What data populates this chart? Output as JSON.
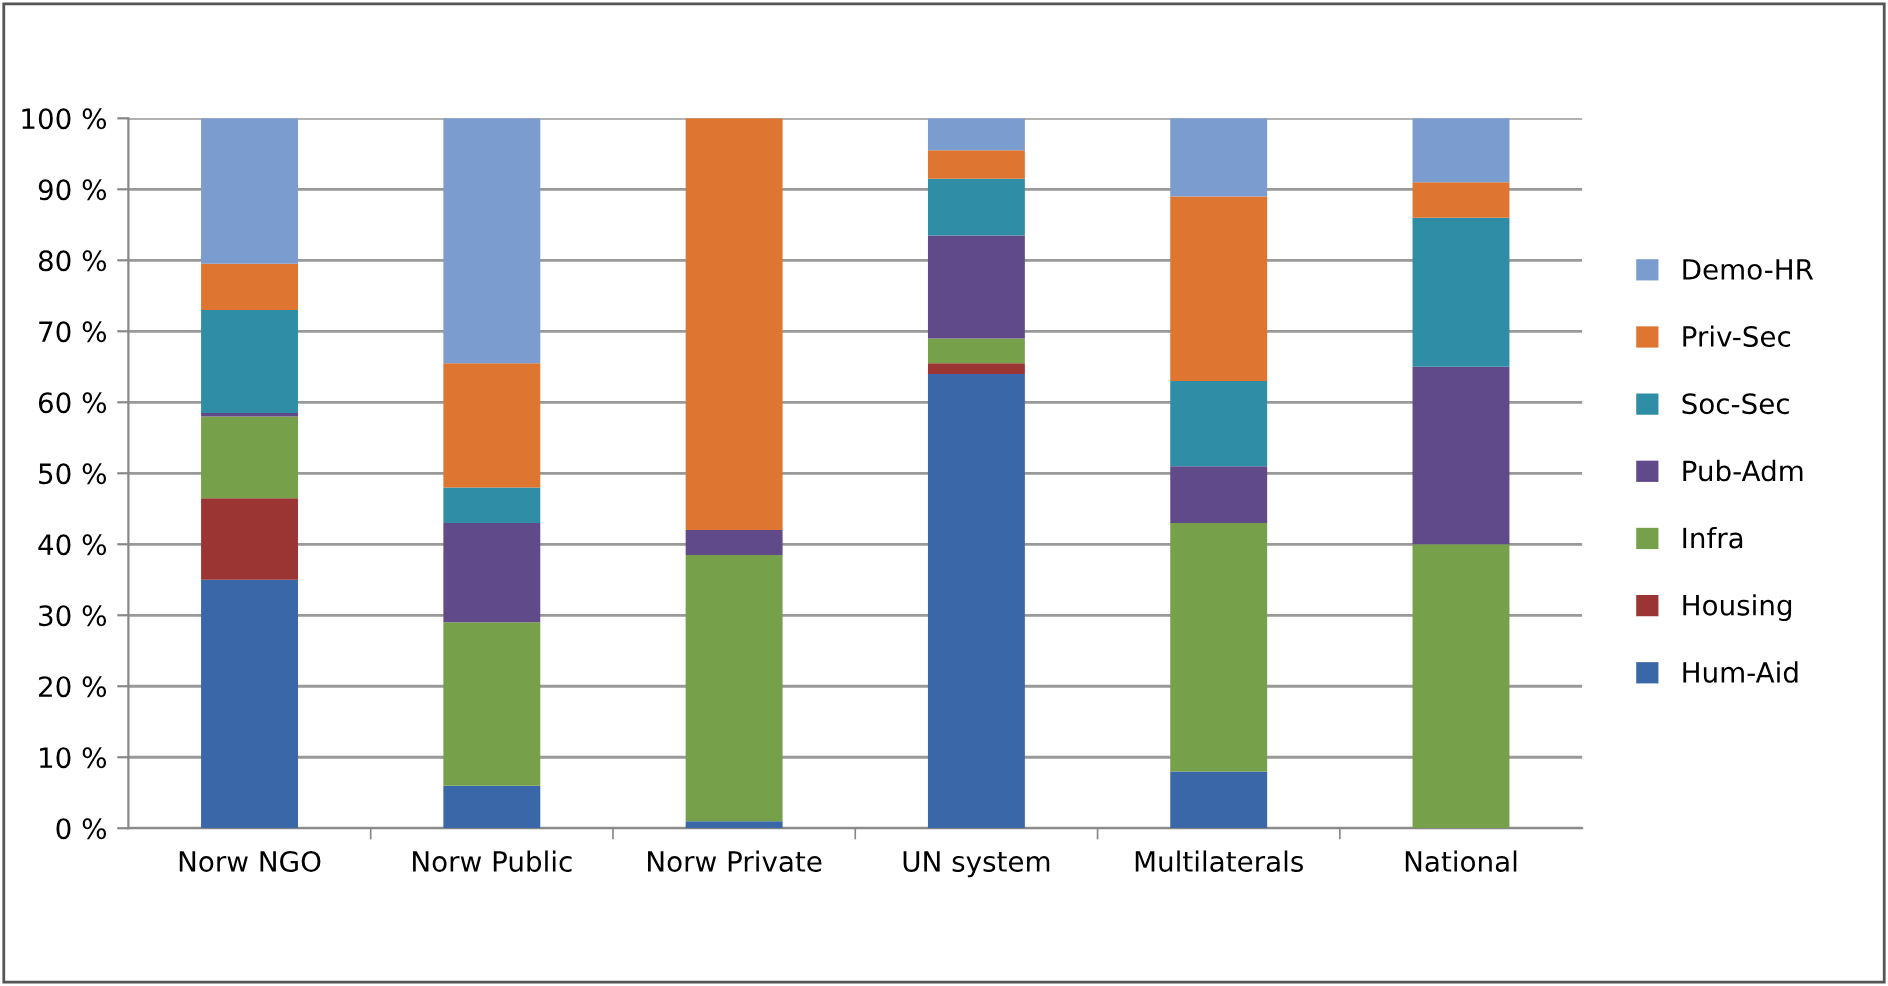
{
  "chart_data": {
    "type": "bar",
    "stacked": true,
    "categories": [
      "Norw NGO",
      "Norw Public",
      "Norw Private",
      "UN system",
      "Multilaterals",
      "National"
    ],
    "series": [
      {
        "name": "Hum-Aid",
        "color": "#3a67a7",
        "values": [
          35,
          6,
          1,
          64,
          8,
          0
        ]
      },
      {
        "name": "Housing",
        "color": "#9b3533",
        "values": [
          11.5,
          0,
          0,
          1.5,
          0,
          0
        ]
      },
      {
        "name": "Infra",
        "color": "#77a04a",
        "values": [
          11.5,
          23,
          37.5,
          3.5,
          35,
          40
        ]
      },
      {
        "name": "Pub-Adm",
        "color": "#614a8a",
        "values": [
          0.5,
          14,
          3.5,
          14.5,
          8,
          25
        ]
      },
      {
        "name": "Soc-Sec",
        "color": "#2f8ea6",
        "values": [
          14.5,
          5,
          0,
          8,
          12,
          21
        ]
      },
      {
        "name": "Priv-Sec",
        "color": "#de7631",
        "values": [
          6.5,
          17.5,
          58,
          4,
          26,
          5
        ]
      },
      {
        "name": "Demo-HR",
        "color": "#7b9ccf",
        "values": [
          20.5,
          34.5,
          0,
          4.5,
          11,
          9
        ]
      }
    ],
    "ylim": [
      0,
      100
    ],
    "yticks": [
      {
        "value": 0,
        "label": "0 %"
      },
      {
        "value": 10,
        "label": "10 %"
      },
      {
        "value": 20,
        "label": "20 %"
      },
      {
        "value": 30,
        "label": "30 %"
      },
      {
        "value": 40,
        "label": "40 %"
      },
      {
        "value": 50,
        "label": "50 %"
      },
      {
        "value": 60,
        "label": "60 %"
      },
      {
        "value": 70,
        "label": "70 %"
      },
      {
        "value": 80,
        "label": "80 %"
      },
      {
        "value": 90,
        "label": "90 %"
      },
      {
        "value": 100,
        "label": "100 %"
      }
    ],
    "grid": "y",
    "legend": "right"
  }
}
